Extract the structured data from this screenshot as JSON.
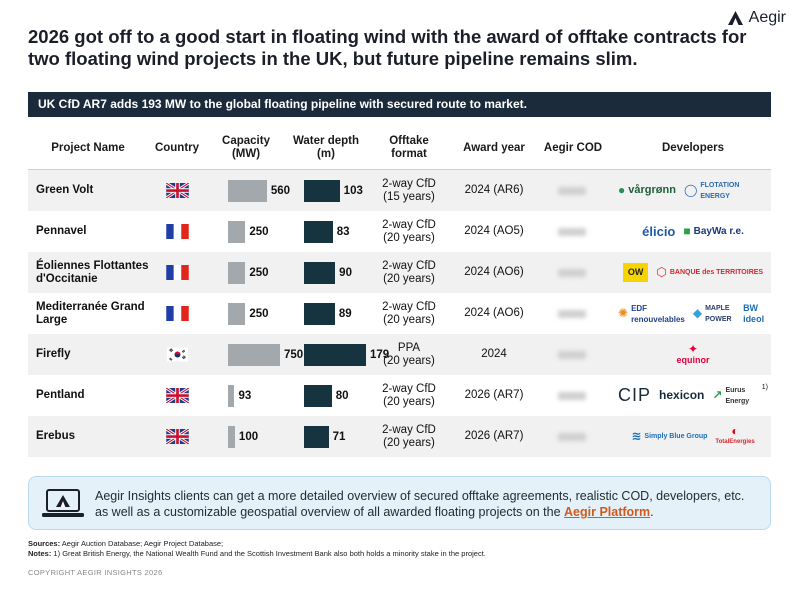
{
  "brand": {
    "logo_text": "Aegir"
  },
  "headline": "2026 got off to a good start in floating wind with the award of offtake contracts for two floating wind projects in the UK, but future pipeline remains slim.",
  "banner": "UK CfD AR7 adds 193 MW to the global floating pipeline with secured route to market.",
  "table": {
    "headers": {
      "project": "Project Name",
      "country": "Country",
      "capacity": "Capacity\n(MW)",
      "depth": "Water depth\n(m)",
      "offtake": "Offtake\nformat",
      "award": "Award year",
      "cod": "Aegir COD",
      "developers": "Developers"
    },
    "capacity_max": 750,
    "depth_max": 179,
    "rows": [
      {
        "name": "Green Volt",
        "country": "uk",
        "capacity": 560,
        "capacity_label": "560",
        "depth": 103,
        "depth_label": "103",
        "offtake": "2-way CfD\n(15 years)",
        "award": "2024 (AR6)",
        "developers": [
          "vårgrønn",
          "FLOTATION ENERGY"
        ]
      },
      {
        "name": "Pennavel",
        "country": "fr",
        "capacity": 250,
        "capacity_label": "250",
        "depth": 83,
        "depth_label": "83",
        "offtake": "2-way CfD\n(20 years)",
        "award": "2024 (AO5)",
        "developers": [
          "élicio",
          "BayWa r.e."
        ]
      },
      {
        "name": "Éoliennes Flottantes d'Occitanie",
        "country": "fr",
        "capacity": 250,
        "capacity_label": "250",
        "depth": 90,
        "depth_label": "90",
        "offtake": "2-way CfD\n(20 years)",
        "award": "2024 (AO6)",
        "developers": [
          "OW",
          "BANQUE des TERRITOIRES"
        ]
      },
      {
        "name": "Mediterranée Grand Large",
        "country": "fr",
        "capacity": 250,
        "capacity_label": "250",
        "depth": 89,
        "depth_label": "89",
        "offtake": "2-way CfD\n(20 years)",
        "award": "2024 (AO6)",
        "developers": [
          "EDF renouvelables",
          "MAPLE POWER",
          "BW ideol"
        ]
      },
      {
        "name": "Firefly",
        "country": "kr",
        "capacity": 750,
        "capacity_label": "750",
        "depth": 179,
        "depth_label": "179",
        "offtake": "PPA\n(20 years)",
        "award": "2024",
        "developers": [
          "equinor"
        ]
      },
      {
        "name": "Pentland",
        "country": "uk",
        "capacity": 93,
        "capacity_label": "93",
        "depth": 80,
        "depth_label": "80",
        "offtake": "2-way CfD\n(20 years)",
        "award": "2026 (AR7)",
        "developers": [
          "CIP",
          "hexicon",
          "Eurus Energy"
        ],
        "note_marker": "1)"
      },
      {
        "name": "Erebus",
        "country": "uk",
        "capacity": 100,
        "capacity_label": "100",
        "depth": 71,
        "depth_label": "71",
        "offtake": "2-way CfD\n(20 years)",
        "award": "2026 (AR7)",
        "developers": [
          "Simply Blue Group",
          "TotalEnergies"
        ]
      }
    ]
  },
  "callout": {
    "text": "Aegir Insights clients can get a more detailed overview of secured offtake agreements, realistic COD, developers, etc. as well as a customizable geospatial overview of all awarded floating projects on the ",
    "link": "Aegir Platform",
    "tail": "."
  },
  "sources": {
    "label": "Sources:",
    "text": " Aegir Auction Database; Aegir Project Database;"
  },
  "notes": {
    "label": "Notes:",
    "marker": " 1)",
    "text": " Great British Energy, the National Wealth Fund and the Scottish Investment Bank also both holds a minority stake in the project."
  },
  "copyright": "COPYRIGHT AEGIR INSIGHTS 2026",
  "colors": {
    "banner": "#1b2b3b",
    "capacity_bar": "#a3a8ad",
    "depth_bar": "#16343f",
    "link": "#d05a1b",
    "callout_bg": "#e4f1f8"
  }
}
